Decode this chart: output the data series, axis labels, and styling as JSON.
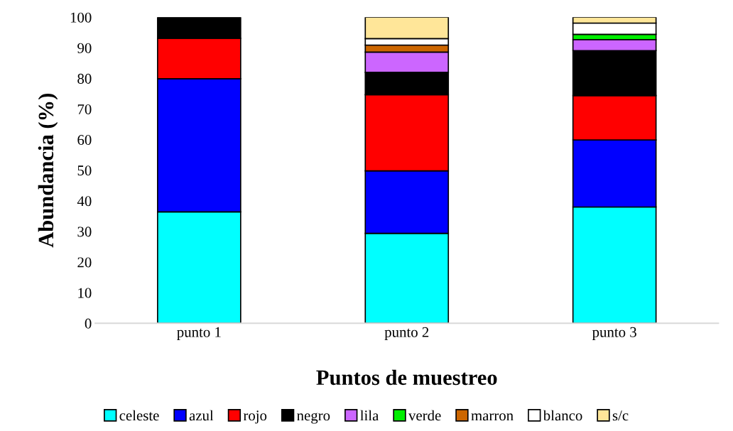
{
  "chart_data": {
    "type": "bar",
    "stacked": true,
    "xlabel": "Puntos de muestreo",
    "ylabel": "Abundancia (%)",
    "categories": [
      "punto 1",
      "punto 2",
      "punto 3"
    ],
    "series": [
      {
        "name": "celeste",
        "color": "#00ffff",
        "values": [
          36.4,
          29.4,
          38.0
        ]
      },
      {
        "name": "azul",
        "color": "#0000ff",
        "values": [
          43.5,
          20.4,
          21.9
        ]
      },
      {
        "name": "rojo",
        "color": "#ff0000",
        "values": [
          13.2,
          24.9,
          14.5
        ]
      },
      {
        "name": "negro",
        "color": "#000000",
        "values": [
          6.9,
          7.3,
          14.7
        ]
      },
      {
        "name": "lila",
        "color": "#cc66ff",
        "values": [
          0,
          6.6,
          3.6
        ]
      },
      {
        "name": "verde",
        "color": "#00ee00",
        "values": [
          0,
          0,
          1.7
        ]
      },
      {
        "name": "marron",
        "color": "#cc6600",
        "values": [
          0,
          2.3,
          0
        ]
      },
      {
        "name": "blanco",
        "color": "#ffffff",
        "values": [
          0,
          2.1,
          3.7
        ]
      },
      {
        "name": "s/c",
        "color": "#ffe699",
        "values": [
          0,
          7.0,
          1.9
        ]
      }
    ],
    "ylim": [
      0,
      100
    ],
    "yticks": [
      0,
      10,
      20,
      30,
      40,
      50,
      60,
      70,
      80,
      90,
      100
    ],
    "grid": false,
    "legend": "bottom"
  }
}
